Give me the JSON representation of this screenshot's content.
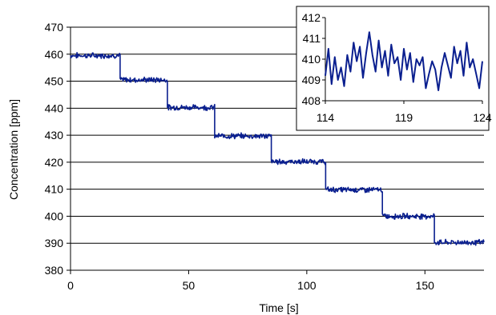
{
  "chart_data": [
    {
      "type": "line",
      "title": "",
      "xlabel": "Time [s]",
      "ylabel": "Concentration [ppm]",
      "xlim": [
        0,
        175
      ],
      "ylim": [
        380,
        470
      ],
      "xticks": [
        0,
        50,
        100,
        150
      ],
      "yticks": [
        380,
        390,
        400,
        410,
        420,
        430,
        440,
        450,
        460,
        470
      ],
      "grid": "horizontal",
      "line_color": "#0a1f8f",
      "series": [
        {
          "steps": [
            {
              "from": 0,
              "to": 21,
              "level": 459.5
            },
            {
              "from": 21,
              "to": 41,
              "level": 450.5
            },
            {
              "from": 41,
              "to": 61,
              "level": 440.3
            },
            {
              "from": 61,
              "to": 85,
              "level": 429.7
            },
            {
              "from": 85,
              "to": 108,
              "level": 420.2
            },
            {
              "from": 108,
              "to": 132,
              "level": 409.8
            },
            {
              "from": 132,
              "to": 154,
              "level": 400
            },
            {
              "from": 154,
              "to": 175,
              "level": 390.3
            }
          ]
        }
      ]
    },
    {
      "type": "line",
      "title": "",
      "xlim": [
        114,
        124
      ],
      "ylim": [
        408,
        412
      ],
      "xticks": [
        114,
        119,
        124
      ],
      "yticks": [
        408,
        409,
        410,
        411,
        412
      ],
      "grid": "none",
      "line_color": "#0a1f8f",
      "series": [
        {
          "x": [
            114.0,
            114.2,
            114.4,
            114.6,
            114.8,
            115.0,
            115.2,
            115.4,
            115.6,
            115.8,
            116.0,
            116.2,
            116.4,
            116.6,
            116.8,
            117.0,
            117.2,
            117.4,
            117.6,
            117.8,
            118.0,
            118.2,
            118.4,
            118.6,
            118.8,
            119.0,
            119.2,
            119.4,
            119.6,
            119.8,
            120.0,
            120.2,
            120.4,
            120.6,
            120.8,
            121.0,
            121.2,
            121.4,
            121.6,
            121.8,
            122.0,
            122.2,
            122.4,
            122.6,
            122.8,
            123.0,
            123.2,
            123.4,
            123.6,
            123.8,
            124.0
          ],
          "y": [
            409.2,
            410.5,
            408.8,
            410.1,
            409.0,
            409.6,
            408.7,
            410.2,
            409.4,
            410.8,
            409.9,
            410.6,
            409.1,
            410.3,
            411.3,
            410.2,
            409.4,
            410.9,
            409.6,
            410.4,
            409.2,
            410.7,
            409.8,
            410.1,
            409.0,
            410.5,
            409.5,
            410.3,
            408.9,
            410.0,
            409.7,
            410.1,
            408.6,
            409.3,
            409.9,
            409.5,
            408.5,
            409.6,
            410.3,
            409.7,
            409.1,
            410.6,
            409.8,
            410.4,
            409.2,
            410.8,
            409.6,
            410.0,
            409.3,
            408.6,
            409.9
          ]
        }
      ]
    }
  ]
}
